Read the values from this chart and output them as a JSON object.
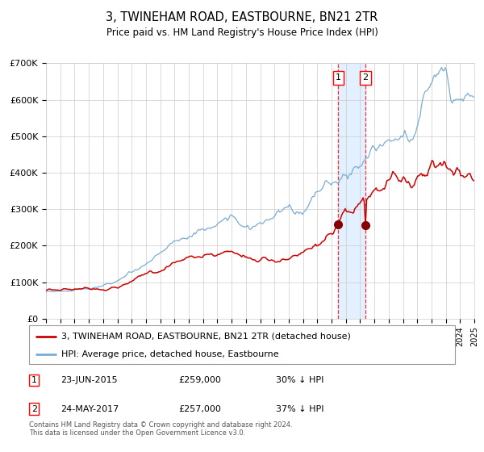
{
  "title": "3, TWINEHAM ROAD, EASTBOURNE, BN21 2TR",
  "subtitle": "Price paid vs. HM Land Registry's House Price Index (HPI)",
  "hpi_color": "#7aadd4",
  "price_color": "#cc0000",
  "marker_color": "#880000",
  "transaction1": {
    "date": "23-JUN-2015",
    "price": 259000,
    "label": "1",
    "pct": "30% ↓ HPI"
  },
  "transaction2": {
    "date": "24-MAY-2017",
    "price": 257000,
    "label": "2",
    "pct": "37% ↓ HPI"
  },
  "legend_line1": "3, TWINEHAM ROAD, EASTBOURNE, BN21 2TR (detached house)",
  "legend_line2": "HPI: Average price, detached house, Eastbourne",
  "footnote": "Contains HM Land Registry data © Crown copyright and database right 2024.\nThis data is licensed under the Open Government Licence v3.0.",
  "ylim": [
    0,
    700000
  ],
  "yticks": [
    0,
    100000,
    200000,
    300000,
    400000,
    500000,
    600000,
    700000
  ],
  "ytick_labels": [
    "£0",
    "£100K",
    "£200K",
    "£300K",
    "£400K",
    "£500K",
    "£600K",
    "£700K"
  ],
  "background_color": "#ffffff",
  "grid_color": "#cccccc",
  "shade_color": "#ddeeff",
  "t1_year": 2015.47,
  "t2_year": 2017.37
}
